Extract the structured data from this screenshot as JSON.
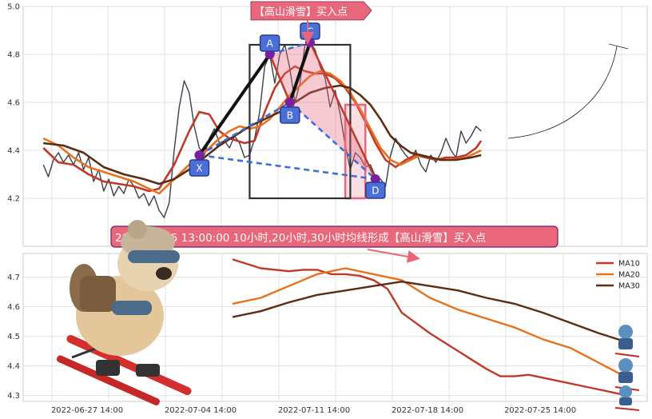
{
  "chart_data": [
    {
      "type": "line",
      "panel": "top",
      "ylim": [
        4.0,
        5.0
      ],
      "yticks": [
        "5.0",
        "4.8",
        "4.6",
        "4.4",
        "4.2"
      ],
      "grid": true,
      "series": [
        {
          "key": "price",
          "color": "#3a3f4a",
          "values": [
            [
              0,
              4.34
            ],
            [
              1,
              4.29
            ],
            [
              2,
              4.36
            ],
            [
              3,
              4.39
            ],
            [
              4,
              4.35
            ],
            [
              5,
              4.38
            ],
            [
              6,
              4.34
            ],
            [
              7,
              4.39
            ],
            [
              8,
              4.32
            ],
            [
              9,
              4.37
            ],
            [
              10,
              4.27
            ],
            [
              11,
              4.32
            ],
            [
              12,
              4.23
            ],
            [
              13,
              4.28
            ],
            [
              14,
              4.21
            ],
            [
              15,
              4.25
            ],
            [
              16,
              4.22
            ],
            [
              17,
              4.28
            ],
            [
              18,
              4.25
            ],
            [
              19,
              4.2
            ],
            [
              20,
              4.22
            ],
            [
              21,
              4.17
            ],
            [
              22,
              4.21
            ],
            [
              23,
              4.15
            ],
            [
              24,
              4.12
            ],
            [
              25,
              4.18
            ],
            [
              26,
              4.4
            ],
            [
              27,
              4.58
            ],
            [
              28,
              4.69
            ],
            [
              29,
              4.64
            ],
            [
              30,
              4.5
            ],
            [
              31,
              4.41
            ],
            [
              32,
              4.38
            ],
            [
              33,
              4.45
            ],
            [
              34,
              4.49
            ],
            [
              35,
              4.43
            ],
            [
              36,
              4.44
            ],
            [
              37,
              4.41
            ],
            [
              38,
              4.46
            ],
            [
              39,
              4.43
            ],
            [
              40,
              4.37
            ],
            [
              41,
              4.38
            ],
            [
              42,
              4.45
            ],
            [
              43,
              4.56
            ],
            [
              44,
              4.75
            ],
            [
              45,
              4.8
            ],
            [
              46,
              4.68
            ],
            [
              47,
              4.8
            ],
            [
              48,
              4.84
            ],
            [
              49,
              4.74
            ],
            [
              50,
              4.6
            ],
            [
              51,
              4.68
            ],
            [
              52,
              4.84
            ],
            [
              53,
              4.85
            ],
            [
              54,
              4.82
            ],
            [
              55,
              4.75
            ],
            [
              56,
              4.7
            ],
            [
              57,
              4.58
            ],
            [
              58,
              4.65
            ],
            [
              59,
              4.55
            ],
            [
              60,
              4.42
            ],
            [
              61,
              4.32
            ],
            [
              62,
              4.39
            ],
            [
              63,
              4.37
            ],
            [
              64,
              4.33
            ],
            [
              65,
              4.34
            ],
            [
              66,
              4.29
            ],
            [
              67,
              4.28
            ],
            [
              68,
              4.25
            ],
            [
              69,
              4.38
            ],
            [
              70,
              4.45
            ],
            [
              71,
              4.41
            ],
            [
              72,
              4.38
            ],
            [
              73,
              4.36
            ],
            [
              74,
              4.4
            ],
            [
              75,
              4.34
            ],
            [
              76,
              4.31
            ],
            [
              77,
              4.38
            ],
            [
              78,
              4.35
            ],
            [
              79,
              4.39
            ],
            [
              80,
              4.45
            ],
            [
              81,
              4.4
            ],
            [
              82,
              4.37
            ],
            [
              83,
              4.48
            ],
            [
              84,
              4.43
            ],
            [
              85,
              4.46
            ],
            [
              86,
              4.5
            ],
            [
              87,
              4.48
            ]
          ]
        },
        {
          "key": "MA10",
          "color": "#c0392b",
          "values": [
            [
              0,
              4.41
            ],
            [
              3,
              4.35
            ],
            [
              6,
              4.34
            ],
            [
              9,
              4.3
            ],
            [
              12,
              4.27
            ],
            [
              15,
              4.26
            ],
            [
              18,
              4.25
            ],
            [
              21,
              4.23
            ],
            [
              23,
              4.24
            ],
            [
              26,
              4.34
            ],
            [
              29,
              4.48
            ],
            [
              31,
              4.56
            ],
            [
              33,
              4.55
            ],
            [
              35,
              4.48
            ],
            [
              37,
              4.45
            ],
            [
              40,
              4.43
            ],
            [
              42,
              4.44
            ],
            [
              44,
              4.56
            ],
            [
              46,
              4.66
            ],
            [
              48,
              4.72
            ],
            [
              50,
              4.75
            ],
            [
              52,
              4.73
            ],
            [
              54,
              4.72
            ],
            [
              56,
              4.72
            ],
            [
              58,
              4.7
            ],
            [
              60,
              4.66
            ],
            [
              62,
              4.6
            ],
            [
              64,
              4.52
            ],
            [
              66,
              4.43
            ],
            [
              68,
              4.36
            ],
            [
              70,
              4.33
            ],
            [
              72,
              4.36
            ],
            [
              74,
              4.38
            ],
            [
              76,
              4.37
            ],
            [
              78,
              4.36
            ],
            [
              80,
              4.37
            ],
            [
              82,
              4.37
            ],
            [
              84,
              4.38
            ],
            [
              86,
              4.41
            ],
            [
              87,
              4.44
            ]
          ]
        },
        {
          "key": "MA20",
          "color": "#e8711c",
          "values": [
            [
              0,
              4.45
            ],
            [
              3,
              4.42
            ],
            [
              6,
              4.37
            ],
            [
              9,
              4.33
            ],
            [
              12,
              4.31
            ],
            [
              15,
              4.29
            ],
            [
              18,
              4.27
            ],
            [
              21,
              4.24
            ],
            [
              23,
              4.22
            ],
            [
              26,
              4.28
            ],
            [
              29,
              4.34
            ],
            [
              31,
              4.37
            ],
            [
              33,
              4.41
            ],
            [
              35,
              4.45
            ],
            [
              37,
              4.48
            ],
            [
              39,
              4.5
            ],
            [
              41,
              4.49
            ],
            [
              43,
              4.5
            ],
            [
              45,
              4.53
            ],
            [
              47,
              4.58
            ],
            [
              49,
              4.63
            ],
            [
              51,
              4.67
            ],
            [
              53,
              4.71
            ],
            [
              55,
              4.73
            ],
            [
              57,
              4.72
            ],
            [
              59,
              4.69
            ],
            [
              61,
              4.64
            ],
            [
              63,
              4.57
            ],
            [
              65,
              4.49
            ],
            [
              67,
              4.41
            ],
            [
              69,
              4.36
            ],
            [
              71,
              4.34
            ],
            [
              73,
              4.36
            ],
            [
              75,
              4.38
            ],
            [
              77,
              4.37
            ],
            [
              79,
              4.36
            ],
            [
              81,
              4.36
            ],
            [
              84,
              4.37
            ],
            [
              87,
              4.4
            ]
          ]
        },
        {
          "key": "MA30",
          "color": "#5a2d14",
          "values": [
            [
              0,
              4.43
            ],
            [
              4,
              4.42
            ],
            [
              8,
              4.39
            ],
            [
              12,
              4.33
            ],
            [
              16,
              4.3
            ],
            [
              20,
              4.28
            ],
            [
              23,
              4.26
            ],
            [
              26,
              4.28
            ],
            [
              29,
              4.32
            ],
            [
              32,
              4.37
            ],
            [
              35,
              4.42
            ],
            [
              38,
              4.46
            ],
            [
              41,
              4.5
            ],
            [
              44,
              4.53
            ],
            [
              47,
              4.56
            ],
            [
              50,
              4.6
            ],
            [
              53,
              4.64
            ],
            [
              56,
              4.66
            ],
            [
              59,
              4.67
            ],
            [
              61,
              4.66
            ],
            [
              63,
              4.63
            ],
            [
              65,
              4.59
            ],
            [
              67,
              4.53
            ],
            [
              69,
              4.46
            ],
            [
              71,
              4.42
            ],
            [
              73,
              4.39
            ],
            [
              75,
              4.38
            ],
            [
              77,
              4.37
            ],
            [
              79,
              4.36
            ],
            [
              82,
              4.36
            ],
            [
              85,
              4.37
            ],
            [
              87,
              4.38
            ]
          ]
        }
      ]
    },
    {
      "type": "line",
      "panel": "bottom",
      "ylim": [
        4.28,
        4.78
      ],
      "yticks": [
        "4.7",
        "4.6",
        "4.5",
        "4.4",
        "4.3"
      ],
      "xticks": [
        "2022-06-27 14:00",
        "2022-07-04 14:00",
        "2022-07-11 14:00",
        "2022-07-18 14:00",
        "2022-07-25 14:00"
      ],
      "grid": true,
      "legend_position": "top-right",
      "series": [
        {
          "name": "MA10",
          "color": "#c0392b",
          "values": [
            [
              0,
              4.76
            ],
            [
              2,
              4.73
            ],
            [
              4,
              4.72
            ],
            [
              5,
              4.725
            ],
            [
              6,
              4.725
            ],
            [
              7,
              4.71
            ],
            [
              8,
              4.71
            ],
            [
              9,
              4.705
            ],
            [
              10,
              4.69
            ],
            [
              11,
              4.66
            ],
            [
              12,
              4.58
            ],
            [
              14,
              4.51
            ],
            [
              16,
              4.45
            ],
            [
              17,
              4.42
            ],
            [
              18,
              4.39
            ],
            [
              19,
              4.365
            ],
            [
              20,
              4.365
            ],
            [
              21,
              4.37
            ],
            [
              23,
              4.35
            ],
            [
              25,
              4.33
            ],
            [
              27,
              4.31
            ],
            [
              28,
              4.3
            ]
          ]
        },
        {
          "name": "MA20",
          "color": "#e8711c",
          "values": [
            [
              0,
              4.61
            ],
            [
              2,
              4.63
            ],
            [
              4,
              4.67
            ],
            [
              6,
              4.71
            ],
            [
              8,
              4.73
            ],
            [
              10,
              4.71
            ],
            [
              12,
              4.69
            ],
            [
              14,
              4.63
            ],
            [
              16,
              4.59
            ],
            [
              18,
              4.56
            ],
            [
              20,
              4.53
            ],
            [
              22,
              4.49
            ],
            [
              24,
              4.46
            ],
            [
              26,
              4.41
            ],
            [
              28,
              4.36
            ]
          ]
        },
        {
          "name": "MA30",
          "color": "#5a2d14",
          "values": [
            [
              0,
              4.565
            ],
            [
              2,
              4.585
            ],
            [
              4,
              4.615
            ],
            [
              6,
              4.64
            ],
            [
              8,
              4.655
            ],
            [
              10,
              4.67
            ],
            [
              12,
              4.685
            ],
            [
              14,
              4.67
            ],
            [
              16,
              4.655
            ],
            [
              18,
              4.63
            ],
            [
              20,
              4.61
            ],
            [
              22,
              4.58
            ],
            [
              24,
              4.545
            ],
            [
              26,
              4.51
            ],
            [
              28,
              4.48
            ]
          ]
        }
      ]
    }
  ],
  "pattern": {
    "points": [
      {
        "label": "X",
        "x": 31,
        "y": 4.38
      },
      {
        "label": "A",
        "x": 45,
        "y": 4.8
      },
      {
        "label": "B",
        "x": 49,
        "y": 4.6
      },
      {
        "label": "C",
        "x": 53,
        "y": 4.85
      },
      {
        "label": "D",
        "x": 66,
        "y": 4.28
      }
    ],
    "box": {
      "x1": 41,
      "x2": 61,
      "y1": 4.2,
      "y2": 4.84
    },
    "pink_box": {
      "x1": 60,
      "x2": 64,
      "y1": 4.2,
      "y2": 4.59
    }
  },
  "annotations": {
    "buy_point": "【高山滑雪】买入点",
    "signal": "2022-07-15 13:00:00 10小时,20小时,30小时均线形成【高山滑雪】买入点"
  },
  "colors": {
    "callout_fill": "#e8677a",
    "callout_border": "#7b2a4b",
    "label_fill": "#4a6fd8",
    "label_border": "#2b3a8a",
    "marker": "#7a1fa2",
    "grid": "#e0e0e0"
  }
}
